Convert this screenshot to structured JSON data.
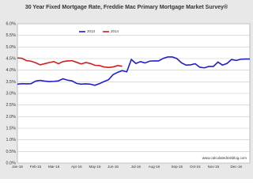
{
  "chart_data": {
    "type": "line",
    "title": "30 Year Fixed Mortgage Rate, Freddie Mac Primary Mortgage Market Survey®",
    "source": "www.calculatedriskblog.com",
    "categories": [
      "Jan-16",
      null,
      null,
      null,
      "Feb-16",
      null,
      null,
      null,
      "Mar-16",
      null,
      null,
      null,
      null,
      "Apr-16",
      null,
      null,
      null,
      "May-16",
      null,
      null,
      null,
      "Jun-16",
      null,
      null,
      null,
      null,
      "Jul-16",
      null,
      null,
      null,
      "Aug-16",
      null,
      null,
      null,
      null,
      "Sep-16",
      null,
      null,
      null,
      "Oct-16",
      null,
      null,
      null,
      "Nov-16",
      null,
      null,
      null,
      null,
      "Dec-16",
      null,
      null,
      null
    ],
    "series": [
      {
        "name": "2013",
        "color": "#1f1fd0",
        "values": [
          3.4,
          3.42,
          3.41,
          3.42,
          3.53,
          3.56,
          3.53,
          3.51,
          3.52,
          3.54,
          3.63,
          3.57,
          3.54,
          3.43,
          3.4,
          3.41,
          3.4,
          3.35,
          3.42,
          3.51,
          3.59,
          3.81,
          3.91,
          3.98,
          3.93,
          4.46,
          4.29,
          4.37,
          4.31,
          4.39,
          4.4,
          4.4,
          4.51,
          4.57,
          4.57,
          4.5,
          4.32,
          4.22,
          4.23,
          4.28,
          4.13,
          4.1,
          4.16,
          4.16,
          4.35,
          4.22,
          4.29,
          4.46,
          4.42,
          4.47,
          4.48,
          4.48
        ]
      },
      {
        "name": "2014",
        "color": "#d01f1f",
        "values": [
          4.53,
          4.51,
          4.41,
          4.39,
          4.32,
          4.23,
          4.28,
          4.33,
          4.37,
          4.28,
          4.37,
          4.4,
          4.41,
          4.34,
          4.27,
          4.33,
          4.29,
          4.21,
          4.2,
          4.14,
          4.12,
          4.14,
          4.2,
          4.17,
          null,
          null,
          null,
          null,
          null,
          null,
          null,
          null,
          null,
          null,
          null,
          null,
          null,
          null,
          null,
          null,
          null,
          null,
          null,
          null,
          null,
          null,
          null,
          null,
          null,
          null,
          null,
          null
        ]
      }
    ],
    "ylim": [
      0,
      6
    ],
    "yticks": [
      {
        "value": 0,
        "label": "0.0%"
      },
      {
        "value": 0.5,
        "label": "0.5%"
      },
      {
        "value": 1,
        "label": "1.0%"
      },
      {
        "value": 1.5,
        "label": "1.5%"
      },
      {
        "value": 2,
        "label": "2.0%"
      },
      {
        "value": 2.5,
        "label": "2.5%"
      },
      {
        "value": 3,
        "label": "3.0%"
      },
      {
        "value": 3.5,
        "label": "3.5%"
      },
      {
        "value": 4,
        "label": "4.0%"
      },
      {
        "value": 4.5,
        "label": "4.5%"
      },
      {
        "value": 5,
        "label": "5.0%"
      },
      {
        "value": 5.5,
        "label": "5.5%"
      },
      {
        "value": 6,
        "label": "6.0%"
      }
    ],
    "grid": true
  }
}
